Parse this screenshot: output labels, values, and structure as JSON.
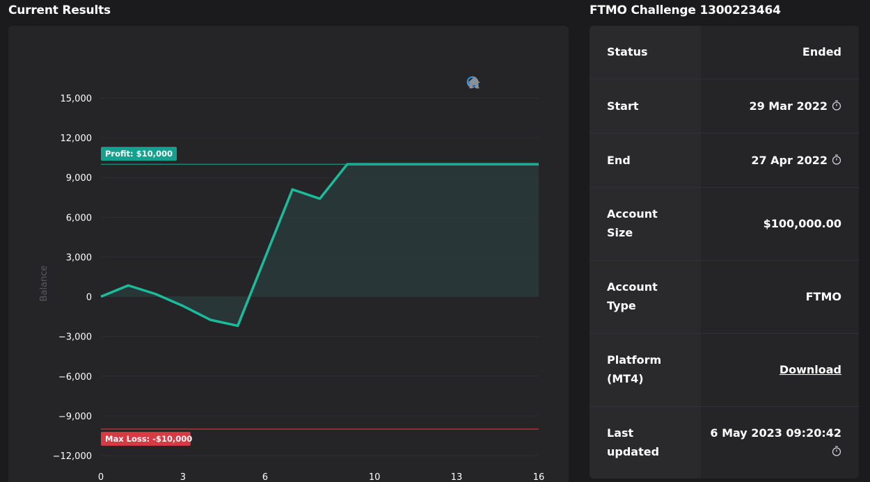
{
  "left_section": {
    "title": "Current Results"
  },
  "right_section": {
    "title": "FTMO Challenge 1300223464"
  },
  "toolbar": {
    "icons": [
      "zoom-in-icon",
      "zoom-out-icon",
      "zoom-select-icon",
      "home-icon"
    ],
    "active_color": "#2196f3",
    "icon_color": "#8a8f99"
  },
  "chart_data": {
    "type": "area",
    "ylabel": "Balance",
    "x_ticks": [
      "0",
      "3",
      "6",
      "10",
      "13",
      "16"
    ],
    "y_ticks": [
      "15,000",
      "12,000",
      "9,000",
      "6,000",
      "3,000",
      "0",
      "−3,000",
      "−6,000",
      "−9,000",
      "−12,000"
    ],
    "xlim": [
      0,
      16
    ],
    "ylim": [
      -12000,
      15000
    ],
    "series": [
      {
        "color": "#1abc9c",
        "x": [
          0,
          1,
          2,
          3,
          4,
          5,
          7,
          8,
          9,
          16
        ],
        "y": [
          0,
          850,
          200,
          -700,
          -1750,
          -2200,
          8100,
          7400,
          10000,
          10000
        ]
      }
    ],
    "annotations": [
      {
        "y": 10000,
        "label": "Profit: $10,000",
        "color": "#13a28f"
      },
      {
        "y": -10000,
        "label": "Max Loss: -$10,000",
        "color": "#d63b44"
      }
    ]
  },
  "info": {
    "rows": [
      {
        "label": "Status",
        "value": "Ended"
      },
      {
        "label": "Start",
        "value": "29 Mar 2022",
        "icon": "timer-icon"
      },
      {
        "label": "End",
        "value": "27 Apr 2022",
        "icon": "timer-icon"
      },
      {
        "label": "Account Size",
        "value": "$100,000.00"
      },
      {
        "label": "Account Type",
        "value": "FTMO"
      },
      {
        "label": "Platform (MT4)",
        "value": "Download",
        "link": true
      },
      {
        "label": "Last updated",
        "value": "6 May 2023 09:20:42",
        "icon": "timer-icon"
      }
    ]
  }
}
